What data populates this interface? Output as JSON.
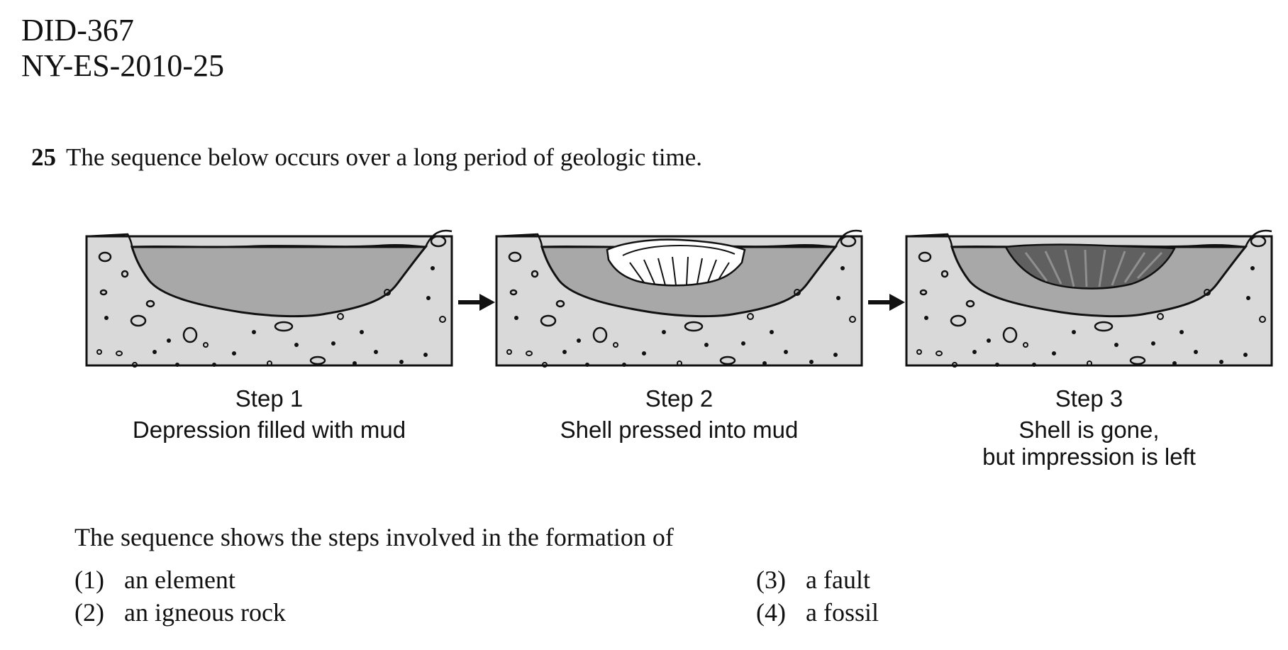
{
  "header": {
    "id_line1": "DID-367",
    "id_line2": "NY-ES-2010-25"
  },
  "question": {
    "number": "25",
    "stem": "The sequence below occurs over a long period of geologic time.",
    "prompt": "The sequence shows the steps involved in the formation of",
    "choices": [
      {
        "num": "(1)",
        "text": "an element"
      },
      {
        "num": "(2)",
        "text": "an igneous rock"
      },
      {
        "num": "(3)",
        "text": "a fault"
      },
      {
        "num": "(4)",
        "text": "a fossil"
      }
    ]
  },
  "steps": [
    {
      "title": "Step 1",
      "caption": "Depression filled with mud"
    },
    {
      "title": "Step 2",
      "caption": "Shell pressed into mud"
    },
    {
      "title": "Step 3",
      "caption_line1": "Shell is gone,",
      "caption_line2": "but impression is left"
    }
  ],
  "colors": {
    "rock": "#d9d9d9",
    "mud": "#a8a8a8",
    "shell": "#ffffff",
    "impression": "#606060",
    "outline": "#111111"
  }
}
